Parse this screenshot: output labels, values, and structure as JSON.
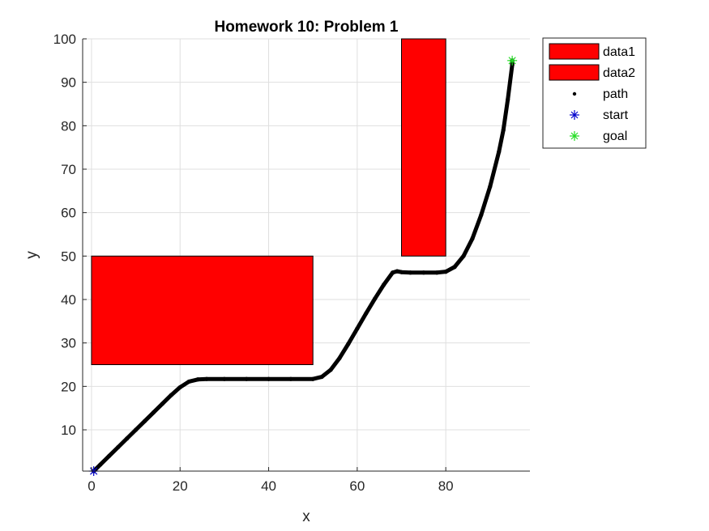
{
  "chart_data": {
    "type": "scatter",
    "title": "Homework 10: Problem 1",
    "xlabel": "x",
    "ylabel": "y",
    "xlim": [
      -2,
      99
    ],
    "ylim": [
      0.5,
      100
    ],
    "x_ticks": [
      0,
      20,
      40,
      60,
      80
    ],
    "y_ticks": [
      10,
      20,
      30,
      40,
      50,
      60,
      70,
      80,
      90,
      100
    ],
    "x_tick_labels": [
      "0",
      "20",
      "40",
      "60",
      "80"
    ],
    "y_tick_labels": [
      "10",
      "20",
      "30",
      "40",
      "50",
      "60",
      "70",
      "80",
      "90",
      "100"
    ],
    "grid": true,
    "legend_position": "outside-top-right",
    "obstacles": [
      {
        "name": "data1",
        "x": 0,
        "y": 25,
        "width": 50,
        "height": 25,
        "color": "#ff0000"
      },
      {
        "name": "data2",
        "x": 70,
        "y": 50,
        "width": 10,
        "height": 50,
        "color": "#ff0000"
      }
    ],
    "path": {
      "name": "path",
      "color": "#000000",
      "points": [
        [
          0.5,
          0.5
        ],
        [
          2,
          2
        ],
        [
          4,
          4
        ],
        [
          6,
          6
        ],
        [
          8,
          8
        ],
        [
          10,
          10
        ],
        [
          12,
          12
        ],
        [
          14,
          14
        ],
        [
          16,
          16
        ],
        [
          18,
          18
        ],
        [
          20,
          19.8
        ],
        [
          22,
          21.1
        ],
        [
          24,
          21.6
        ],
        [
          26,
          21.7
        ],
        [
          30,
          21.7
        ],
        [
          35,
          21.7
        ],
        [
          40,
          21.7
        ],
        [
          45,
          21.7
        ],
        [
          50,
          21.7
        ],
        [
          52,
          22.2
        ],
        [
          54,
          23.8
        ],
        [
          56,
          26.5
        ],
        [
          58,
          29.8
        ],
        [
          60,
          33.3
        ],
        [
          62,
          36.8
        ],
        [
          64,
          40.2
        ],
        [
          66,
          43.4
        ],
        [
          68,
          46.2
        ],
        [
          69,
          46.5
        ],
        [
          70,
          46.3
        ],
        [
          72,
          46.2
        ],
        [
          75,
          46.2
        ],
        [
          78,
          46.2
        ],
        [
          80,
          46.4
        ],
        [
          82,
          47.5
        ],
        [
          84,
          50
        ],
        [
          86,
          54
        ],
        [
          88,
          59.5
        ],
        [
          90,
          66
        ],
        [
          92,
          74
        ],
        [
          93,
          79
        ],
        [
          94,
          86
        ],
        [
          95,
          94
        ],
        [
          95,
          95
        ]
      ]
    },
    "start": {
      "name": "start",
      "x": 0.5,
      "y": 0.5,
      "color": "#0000cc",
      "marker": "asterisk"
    },
    "goal": {
      "name": "goal",
      "x": 95,
      "y": 95,
      "color": "#22dd22",
      "marker": "asterisk"
    }
  }
}
